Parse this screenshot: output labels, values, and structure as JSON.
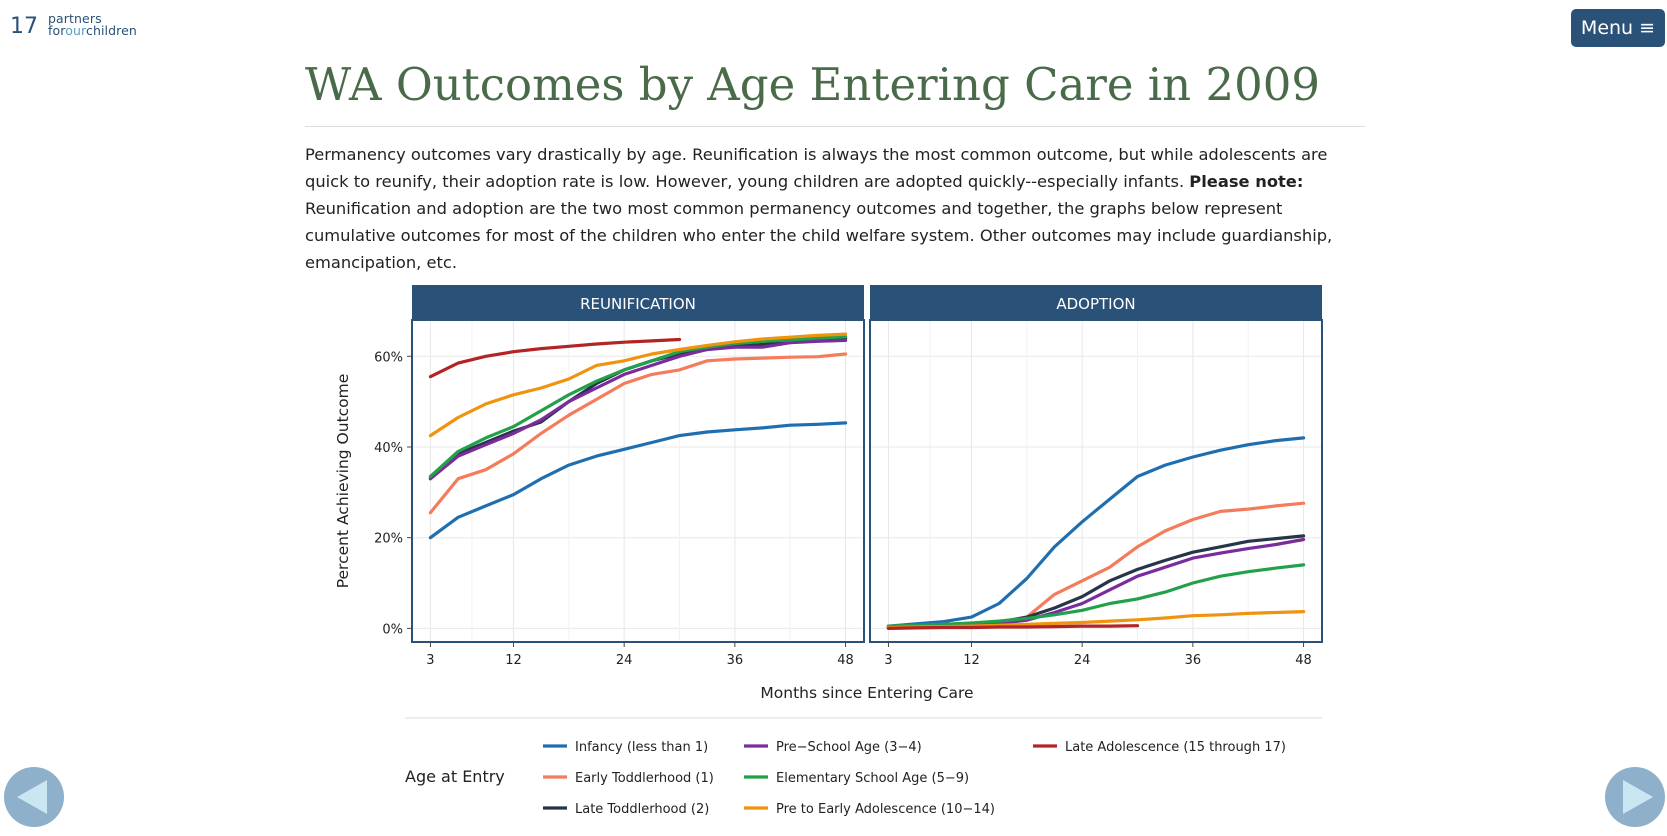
{
  "page_number": "17",
  "logo": {
    "line1": "partners",
    "line2_part1": "for",
    "line2_part2": "our",
    "line2_part3": "children"
  },
  "menu_label": "Menu ≡",
  "title": "WA Outcomes by Age Entering Care in 2009",
  "intro": {
    "text_before": "Permanency outcomes vary drastically by age. Reunification is always the most common outcome, but while adolescents are quick to reunify, their adoption rate is low. However, young children are adopted quickly--especially infants. ",
    "bold": "Please note:",
    "text_after": " Reunification and adoption are the two most common permanency outcomes and together, the graphs below represent cumulative outcomes for most of the children who enter the child welfare system. Other outcomes may include guardianship, emancipation, etc."
  },
  "colors": {
    "panel_header": "#2a5178",
    "title": "#4a6b4a",
    "nav": "#8eb0ca",
    "nav_arrow": "#c9e6f1",
    "series": [
      "#1f6fb0",
      "#f47c5b",
      "#27354a",
      "#7a2b9c",
      "#22a04a",
      "#f0930f",
      "#b32424"
    ]
  },
  "chart_data": {
    "type": "line",
    "ylabel": "Percent Achieving Outcome",
    "xlabel": "Months since Entering Care",
    "x_ticks": [
      3,
      12,
      24,
      36,
      48
    ],
    "y_ticks": [
      0,
      20,
      40,
      60
    ],
    "y_tick_labels": [
      "0%",
      "20%",
      "40%",
      "60%"
    ],
    "xlim": [
      1,
      50
    ],
    "ylim": [
      -3,
      68
    ],
    "legend_title": "Age at Entry",
    "legend_position": "bottom",
    "grid": true,
    "x": [
      3,
      6,
      9,
      12,
      15,
      18,
      21,
      24,
      27,
      30,
      33,
      36,
      39,
      42,
      45,
      48
    ],
    "panels": [
      {
        "title": "REUNIFICATION",
        "series": [
          {
            "name": "Infancy (less than 1)",
            "values": [
              20,
              24.5,
              27,
              29.5,
              33,
              36,
              38,
              39.5,
              41,
              42.5,
              43.3,
              43.8,
              44.2,
              44.8,
              45,
              45.3
            ]
          },
          {
            "name": "Early Toddlerhood (1)",
            "values": [
              25.5,
              33,
              35,
              38.5,
              43,
              47,
              50.5,
              54,
              56,
              57,
              59,
              59.4,
              59.6,
              59.8,
              59.9,
              60.5
            ]
          },
          {
            "name": "Late Toddlerhood (2)",
            "values": [
              33,
              38.5,
              41,
              43.5,
              45.5,
              50,
              54,
              57,
              59,
              60.5,
              61.5,
              62.2,
              62.6,
              63.2,
              63.6,
              64
            ]
          },
          {
            "name": "Pre-School Age (3-4)",
            "values": [
              33,
              38,
              40.5,
              43,
              46,
              50,
              53,
              56,
              58,
              60,
              61.5,
              62,
              62,
              63,
              63.3,
              63.5
            ]
          },
          {
            "name": "Elementary School Age (5-9)",
            "values": [
              33.5,
              39,
              42,
              44.5,
              48,
              51.5,
              54.5,
              57,
              59,
              61,
              62,
              62.8,
              63.3,
              63.6,
              64,
              64.3
            ]
          },
          {
            "name": "Pre to Early Adolescence (10-14)",
            "values": [
              42.5,
              46.5,
              49.5,
              51.5,
              53,
              55,
              58,
              59,
              60.5,
              61.5,
              62.4,
              63.2,
              63.8,
              64.2,
              64.6,
              64.9
            ]
          },
          {
            "name": "Late Adolescence (15 through 17)",
            "values": [
              55.5,
              58.5,
              60,
              61,
              61.7,
              62.2,
              62.7,
              63.1,
              63.4,
              63.7,
              null,
              null,
              null,
              null,
              null,
              null
            ]
          }
        ]
      },
      {
        "title": "ADOPTION",
        "series": [
          {
            "name": "Infancy (less than 1)",
            "values": [
              0.5,
              1,
              1.5,
              2.5,
              5.5,
              11,
              18,
              23.5,
              28.5,
              33.5,
              36,
              37.8,
              39.3,
              40.5,
              41.4,
              42
            ]
          },
          {
            "name": "Early Toddlerhood (1)",
            "values": [
              0.3,
              0.6,
              0.9,
              1.1,
              1.5,
              2.5,
              7.5,
              10.5,
              13.5,
              18,
              21.5,
              24,
              25.8,
              26.3,
              27,
              27.6
            ]
          },
          {
            "name": "Late Toddlerhood (2)",
            "values": [
              0.2,
              0.4,
              0.6,
              0.8,
              1.3,
              2.5,
              4.5,
              7,
              10.5,
              13,
              15,
              16.8,
              18,
              19.2,
              19.8,
              20.4
            ]
          },
          {
            "name": "Pre-School Age (3-4)",
            "values": [
              0.2,
              0.4,
              0.6,
              0.8,
              1.1,
              1.8,
              3.5,
              5.5,
              8.5,
              11.5,
              13.5,
              15.5,
              16.6,
              17.6,
              18.5,
              19.6
            ]
          },
          {
            "name": "Elementary School Age (5-9)",
            "values": [
              0.5,
              0.7,
              0.9,
              1.2,
              1.6,
              2.2,
              3,
              4,
              5.5,
              6.5,
              8,
              10,
              11.5,
              12.5,
              13.3,
              14
            ]
          },
          {
            "name": "Pre to Early Adolescence (10-14)",
            "values": [
              0.2,
              0.3,
              0.4,
              0.5,
              0.7,
              0.9,
              1.1,
              1.3,
              1.6,
              1.9,
              2.3,
              2.8,
              3,
              3.3,
              3.5,
              3.7
            ]
          },
          {
            "name": "Late Adolescence (15 through 17)",
            "values": [
              0,
              0.1,
              0.2,
              0.2,
              0.3,
              0.3,
              0.4,
              0.5,
              0.5,
              0.6,
              null,
              null,
              null,
              null,
              null,
              null
            ]
          }
        ]
      }
    ],
    "legend": [
      "Infancy (less than 1)",
      "Early Toddlerhood (1)",
      "Late Toddlerhood (2)",
      "Pre−School Age (3−4)",
      "Elementary School Age (5−9)",
      "Pre to Early Adolescence (10−14)",
      "Late Adolescence (15 through 17)"
    ]
  }
}
